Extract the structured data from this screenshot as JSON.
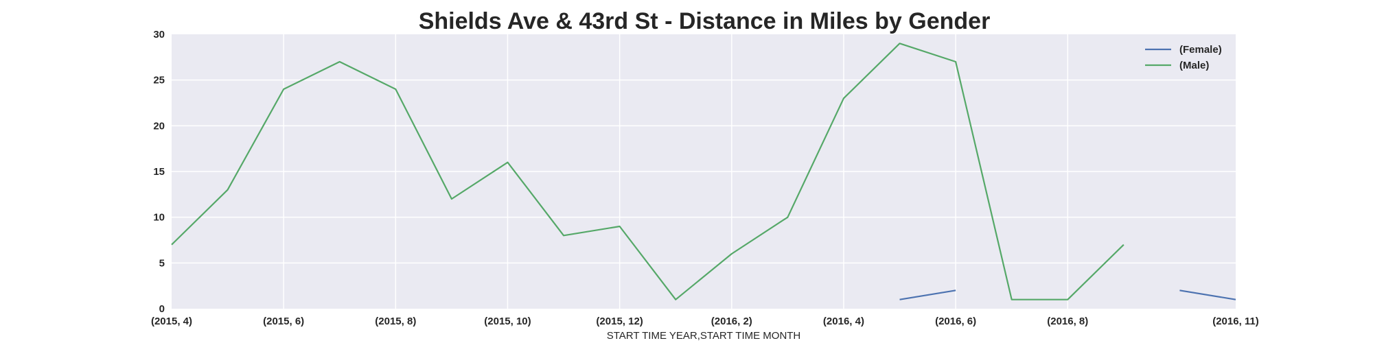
{
  "chart_data": {
    "type": "line",
    "title": "Shields Ave & 43rd St - Distance in Miles by Gender",
    "xlabel": "START TIME YEAR,START TIME MONTH",
    "ylabel": "",
    "ylim": [
      0,
      30
    ],
    "yticks": [
      "0",
      "5",
      "10",
      "15",
      "20",
      "25",
      "30"
    ],
    "categories": [
      "(2015, 4)",
      "(2015, 5)",
      "(2015, 6)",
      "(2015, 7)",
      "(2015, 8)",
      "(2015, 9)",
      "(2015, 10)",
      "(2015, 11)",
      "(2015, 12)",
      "(2016, 1)",
      "(2016, 2)",
      "(2016, 3)",
      "(2016, 4)",
      "(2016, 5)",
      "(2016, 6)",
      "(2016, 7)",
      "(2016, 8)",
      "(2016, 9)",
      "(2016, 10)",
      "(2016, 11)"
    ],
    "xtick_labels": [
      "(2015, 4)",
      "(2015, 6)",
      "(2015, 8)",
      "(2015, 10)",
      "(2015, 12)",
      "(2016, 2)",
      "(2016, 4)",
      "(2016, 6)",
      "(2016, 8)",
      "(2016, 11)"
    ],
    "series": [
      {
        "name": "(Female)",
        "color": "#4c72b0",
        "values": [
          null,
          null,
          null,
          null,
          null,
          null,
          null,
          null,
          null,
          null,
          null,
          null,
          null,
          1,
          2,
          null,
          null,
          null,
          2,
          1
        ]
      },
      {
        "name": "(Male)",
        "color": "#55a868",
        "values": [
          7,
          13,
          24,
          27,
          24,
          12,
          16,
          8,
          9,
          1,
          6,
          10,
          23,
          29,
          27,
          1,
          1,
          7,
          null,
          null
        ]
      }
    ],
    "grid": true,
    "legend_position": "top-right",
    "background": "#eaeaf2"
  }
}
